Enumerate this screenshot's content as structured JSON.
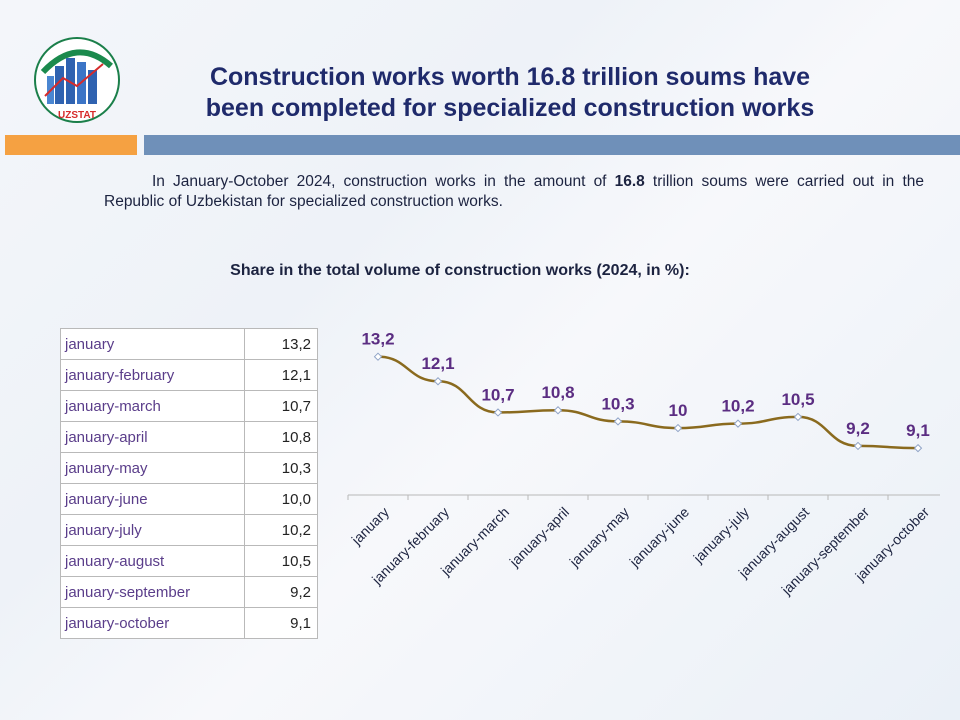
{
  "header": {
    "logo_text": "UZSTAT",
    "title_line1": "Construction works worth 16.8 trillion soums have",
    "title_line2": "been completed for specialized construction works"
  },
  "intro": {
    "before": "In January-October 2024, construction works in the amount of ",
    "highlight": "16.8",
    "after": " trillion soums were carried out in the Republic of Uzbekistan for specialized construction works."
  },
  "subtitle": "Share in the total volume of construction works (2024, in %):",
  "table": {
    "rows": [
      {
        "label": "january",
        "value": "13,2"
      },
      {
        "label": "january-february",
        "value": "12,1"
      },
      {
        "label": "january-march",
        "value": "10,7"
      },
      {
        "label": "january-april",
        "value": "10,8"
      },
      {
        "label": "january-may",
        "value": "10,3"
      },
      {
        "label": "january-june",
        "value": "10,0"
      },
      {
        "label": "january-july",
        "value": "10,2"
      },
      {
        "label": "january-august",
        "value": "10,5"
      },
      {
        "label": "january-september",
        "value": "9,2"
      },
      {
        "label": "january-october",
        "value": "9,1"
      }
    ]
  },
  "chart_data": {
    "type": "line",
    "title": "",
    "categories": [
      "january",
      "january-february",
      "january-march",
      "january-april",
      "january-may",
      "january-june",
      "january-july",
      "january-august",
      "january-september",
      "january-october"
    ],
    "values": [
      13.2,
      12.1,
      10.7,
      10.8,
      10.3,
      10.0,
      10.2,
      10.5,
      9.2,
      9.1
    ],
    "data_labels": [
      "13,2",
      "12,1",
      "10,7",
      "10,8",
      "10,3",
      "10",
      "10,2",
      "10,5",
      "9,2",
      "9,1"
    ],
    "ylim": [
      0,
      14
    ],
    "xlabel": "",
    "ylabel": "",
    "colors": {
      "line": "#8a6a1e",
      "label": "#5b2d82",
      "marker_fill": "#ffffff",
      "marker_stroke": "#8fa3c7"
    }
  },
  "colors": {
    "title": "#1f2a6b",
    "accent_orange": "#f5a142",
    "accent_blue": "#6f90b9"
  }
}
